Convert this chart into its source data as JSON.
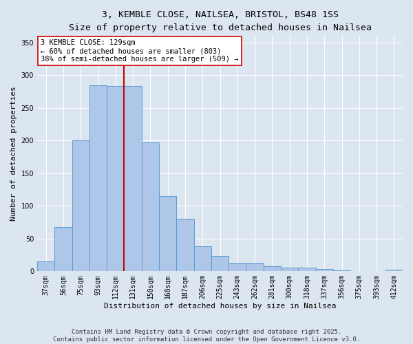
{
  "title_line1": "3, KEMBLE CLOSE, NAILSEA, BRISTOL, BS48 1SS",
  "title_line2": "Size of property relative to detached houses in Nailsea",
  "xlabel": "Distribution of detached houses by size in Nailsea",
  "ylabel": "Number of detached properties",
  "categories": [
    "37sqm",
    "56sqm",
    "75sqm",
    "93sqm",
    "112sqm",
    "131sqm",
    "150sqm",
    "168sqm",
    "187sqm",
    "206sqm",
    "225sqm",
    "243sqm",
    "262sqm",
    "281sqm",
    "300sqm",
    "318sqm",
    "337sqm",
    "356sqm",
    "375sqm",
    "393sqm",
    "412sqm"
  ],
  "values": [
    15,
    68,
    200,
    285,
    283,
    283,
    197,
    115,
    80,
    38,
    24,
    13,
    13,
    8,
    6,
    6,
    4,
    1,
    0,
    0,
    2
  ],
  "bar_color": "#aec6e8",
  "bar_edge_color": "#5b9bd5",
  "vline_x": 5.0,
  "vline_color": "#cc0000",
  "annotation_line1": "3 KEMBLE CLOSE: 129sqm",
  "annotation_line2": "← 60% of detached houses are smaller (803)",
  "annotation_line3": "38% of semi-detached houses are larger (509) →",
  "annotation_box_color": "#ffffff",
  "annotation_box_edge_color": "#cc0000",
  "ylim": [
    0,
    360
  ],
  "yticks": [
    0,
    50,
    100,
    150,
    200,
    250,
    300,
    350
  ],
  "background_color": "#dce6f0",
  "plot_background_color": "#dce6f0",
  "footer_text": "Contains HM Land Registry data © Crown copyright and database right 2025.\nContains public sector information licensed under the Open Government Licence v3.0.",
  "title_fontsize": 9.5,
  "subtitle_fontsize": 8.5,
  "label_fontsize": 8,
  "tick_fontsize": 7,
  "annotation_fontsize": 7.5,
  "footer_fontsize": 6.5
}
